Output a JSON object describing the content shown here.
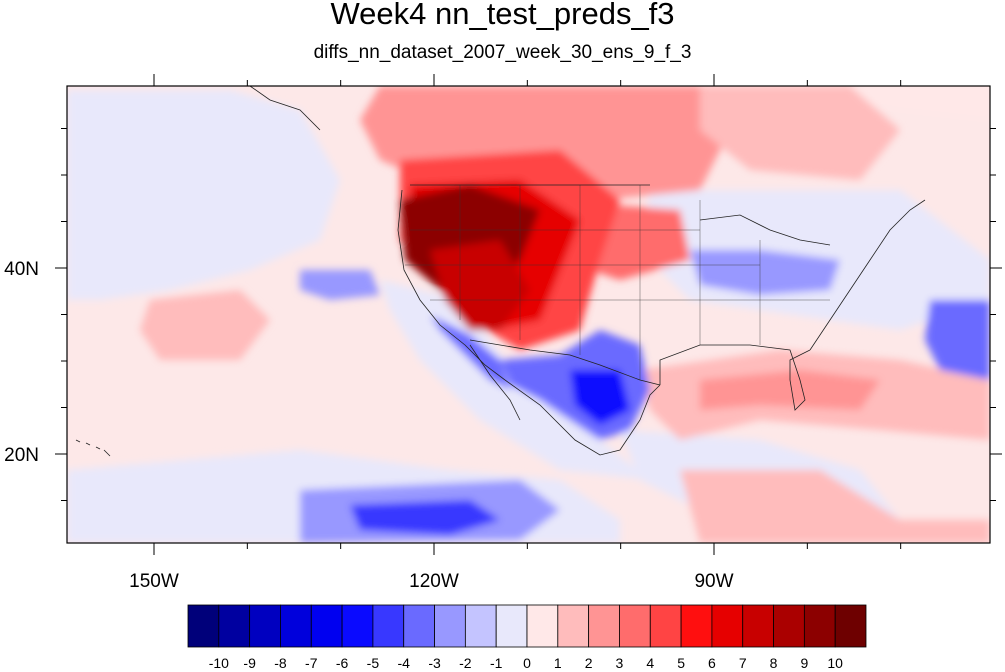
{
  "title": "Week4 nn_test_preds_f3",
  "subtitle": "diffs_nn_dataset_2007_week_30_ens_9_f_3",
  "axes": {
    "x_ticks": [
      {
        "lon": -150,
        "label": "150W"
      },
      {
        "lon": -120,
        "label": "120W"
      },
      {
        "lon": -90,
        "label": "90W"
      }
    ],
    "y_ticks": [
      {
        "lat": 40,
        "label": "40N"
      },
      {
        "lat": 20,
        "label": "20N"
      }
    ]
  },
  "colorbar": {
    "labels": [
      "-10",
      "-9",
      "-8",
      "-7",
      "-6",
      "-5",
      "-4",
      "-3",
      "-2",
      "-1",
      "0",
      "1",
      "2",
      "3",
      "4",
      "5",
      "6",
      "7",
      "8",
      "9",
      "10"
    ],
    "colors": [
      "#00007a",
      "#0000a0",
      "#0000c0",
      "#0000dc",
      "#0000f0",
      "#0a0aff",
      "#3838ff",
      "#6a6aff",
      "#9898ff",
      "#c4c4ff",
      "#e8e8fb",
      "#ffe8e8",
      "#ffbcbc",
      "#ff9494",
      "#ff6c6c",
      "#ff4444",
      "#ff0f0f",
      "#e60000",
      "#c80000",
      "#aa0000",
      "#8c0000",
      "#6e0000"
    ]
  }
}
